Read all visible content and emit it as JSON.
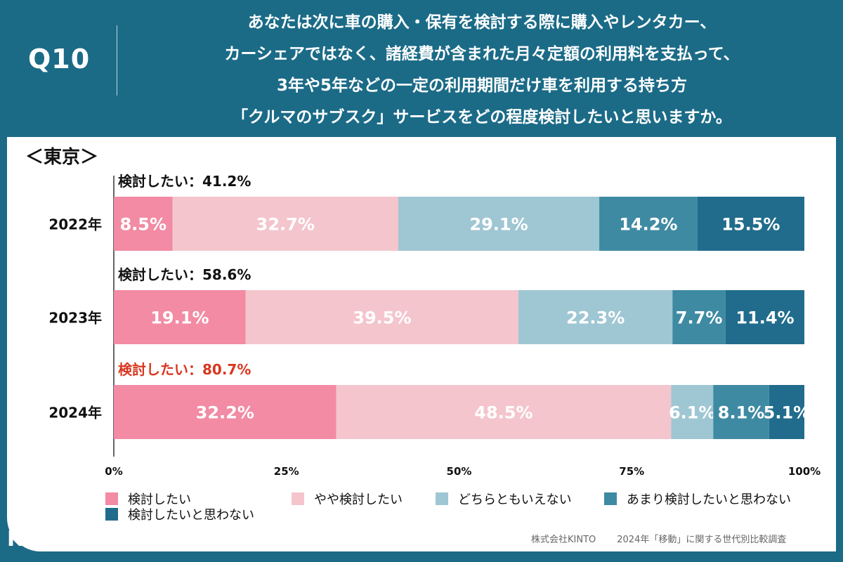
{
  "header": {
    "question_number": "Q10",
    "question_lines": [
      "あなたは次に車の購入・保有を検討する際に購入やレンタカー、",
      "カーシェアではなく、諸経費が含まれた月々定額の利用料を支払って、",
      "3年や5年などの一定の利用期間だけ車を利用する持ち方",
      "「クルマのサブスク」サービスをどの程度検討したいと思いますか。"
    ]
  },
  "region_label": "＜東京＞",
  "colors": {
    "header_bg": "#1b6b87",
    "highlight_text": "#d8371f",
    "series": [
      "#f28ba3",
      "#f4c5cd",
      "#9fc6d3",
      "#3f8aa3",
      "#216c8c"
    ]
  },
  "chart_data": {
    "type": "bar",
    "orientation": "horizontal",
    "stacked": true,
    "categories": [
      "2022年",
      "2023年",
      "2024年"
    ],
    "series": [
      {
        "name": "検討したい",
        "values": [
          8.5,
          19.1,
          32.2
        ]
      },
      {
        "name": "やや検討したい",
        "values": [
          32.7,
          39.5,
          48.5
        ]
      },
      {
        "name": "どちらともいえない",
        "values": [
          29.1,
          22.3,
          6.1
        ]
      },
      {
        "name": "あまり検討したいと思わない",
        "values": [
          14.2,
          7.7,
          8.1
        ]
      },
      {
        "name": "検討したいと思わない",
        "values": [
          15.5,
          11.4,
          5.1
        ]
      }
    ],
    "value_labels": [
      [
        "8.5%",
        "32.7%",
        "29.1%",
        "14.2%",
        "15.5%"
      ],
      [
        "19.1%",
        "39.5%",
        "22.3%",
        "7.7%",
        "11.4%"
      ],
      [
        "32.2%",
        "48.5%",
        "6.1%",
        "8.1%",
        "5.1%"
      ]
    ],
    "summary_labels": [
      "検討したい：41.2%",
      "検討したい：58.6%",
      "検討したい：80.7%"
    ],
    "xlim": [
      0,
      100
    ],
    "xticks": [
      "0%",
      "25%",
      "50%",
      "75%",
      "100%"
    ],
    "legend_position": "bottom"
  },
  "footer": {
    "company": "株式会社KINTO",
    "survey": "2024年「移動」に関する世代別比較調査"
  },
  "logo_text": "KINTO"
}
